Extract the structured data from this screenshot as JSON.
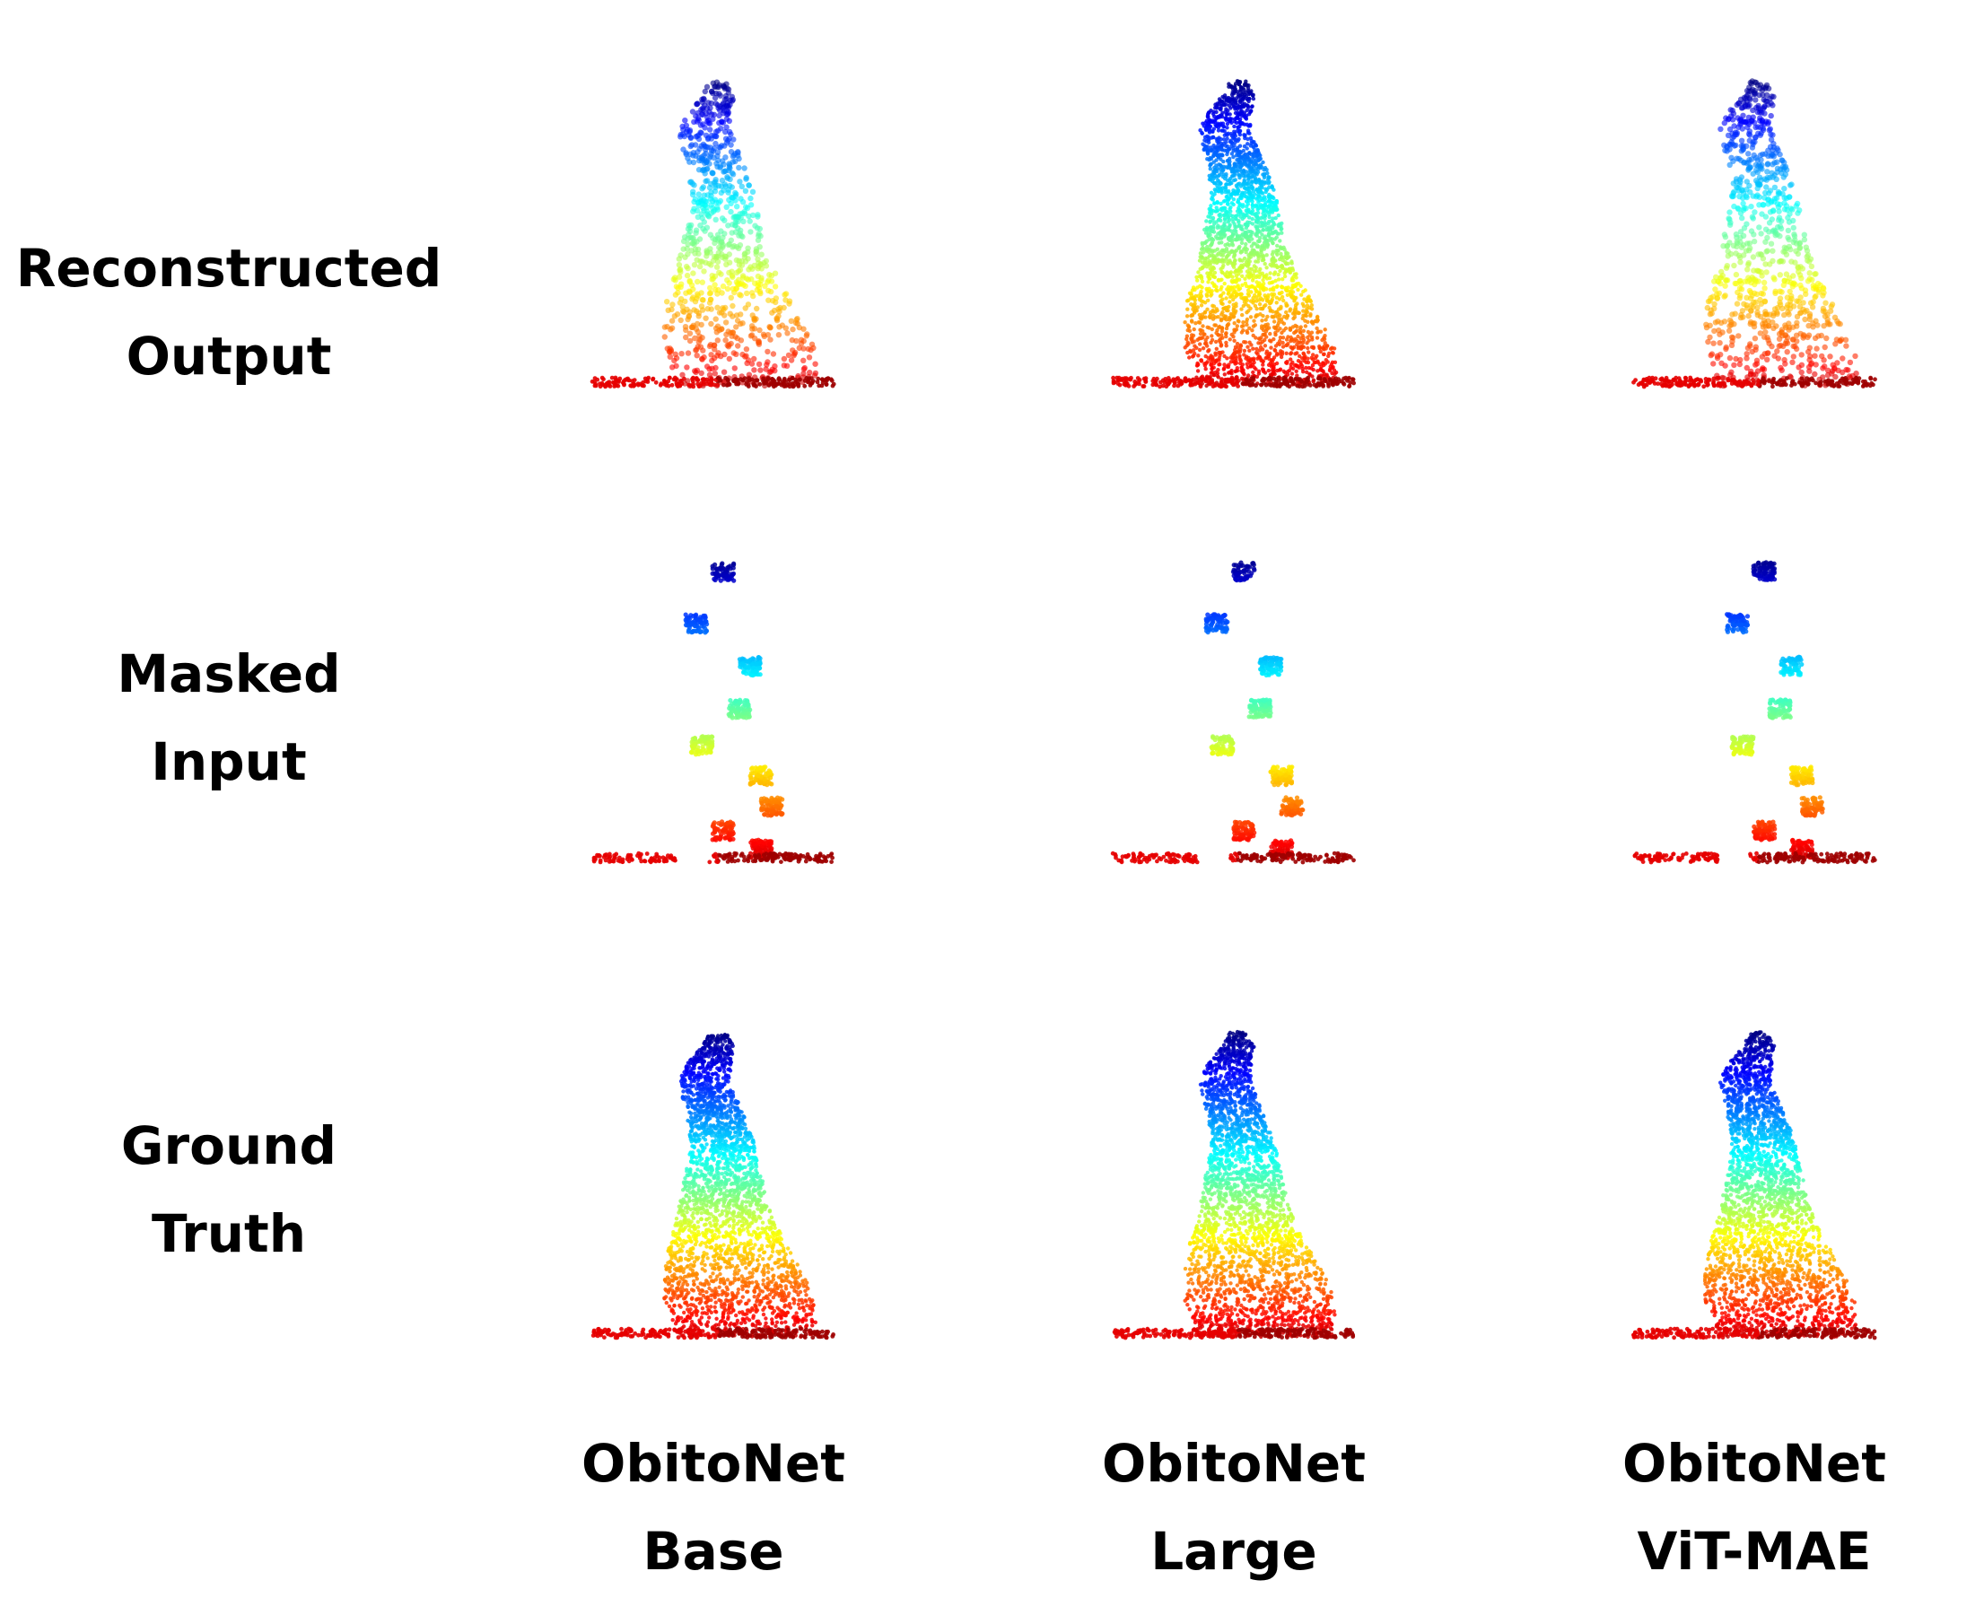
{
  "rows": [
    {
      "key": "reconstructed",
      "line1": "Reconstructed",
      "line2": "Output"
    },
    {
      "key": "masked",
      "line1": "Masked",
      "line2": "Input"
    },
    {
      "key": "ground_truth",
      "line1": "Ground",
      "line2": "Truth"
    }
  ],
  "columns": [
    {
      "key": "base",
      "line1": "ObitoNet",
      "line2": "Base"
    },
    {
      "key": "large",
      "line1": "ObitoNet",
      "line2": "Large"
    },
    {
      "key": "vitmae",
      "line1": "ObitoNet",
      "line2": "ViT-MAE"
    }
  ],
  "colormap": [
    "#00007f",
    "#0000ff",
    "#0080ff",
    "#00ffff",
    "#80ff80",
    "#ffff00",
    "#ff8000",
    "#ff0000",
    "#7f0000"
  ]
}
